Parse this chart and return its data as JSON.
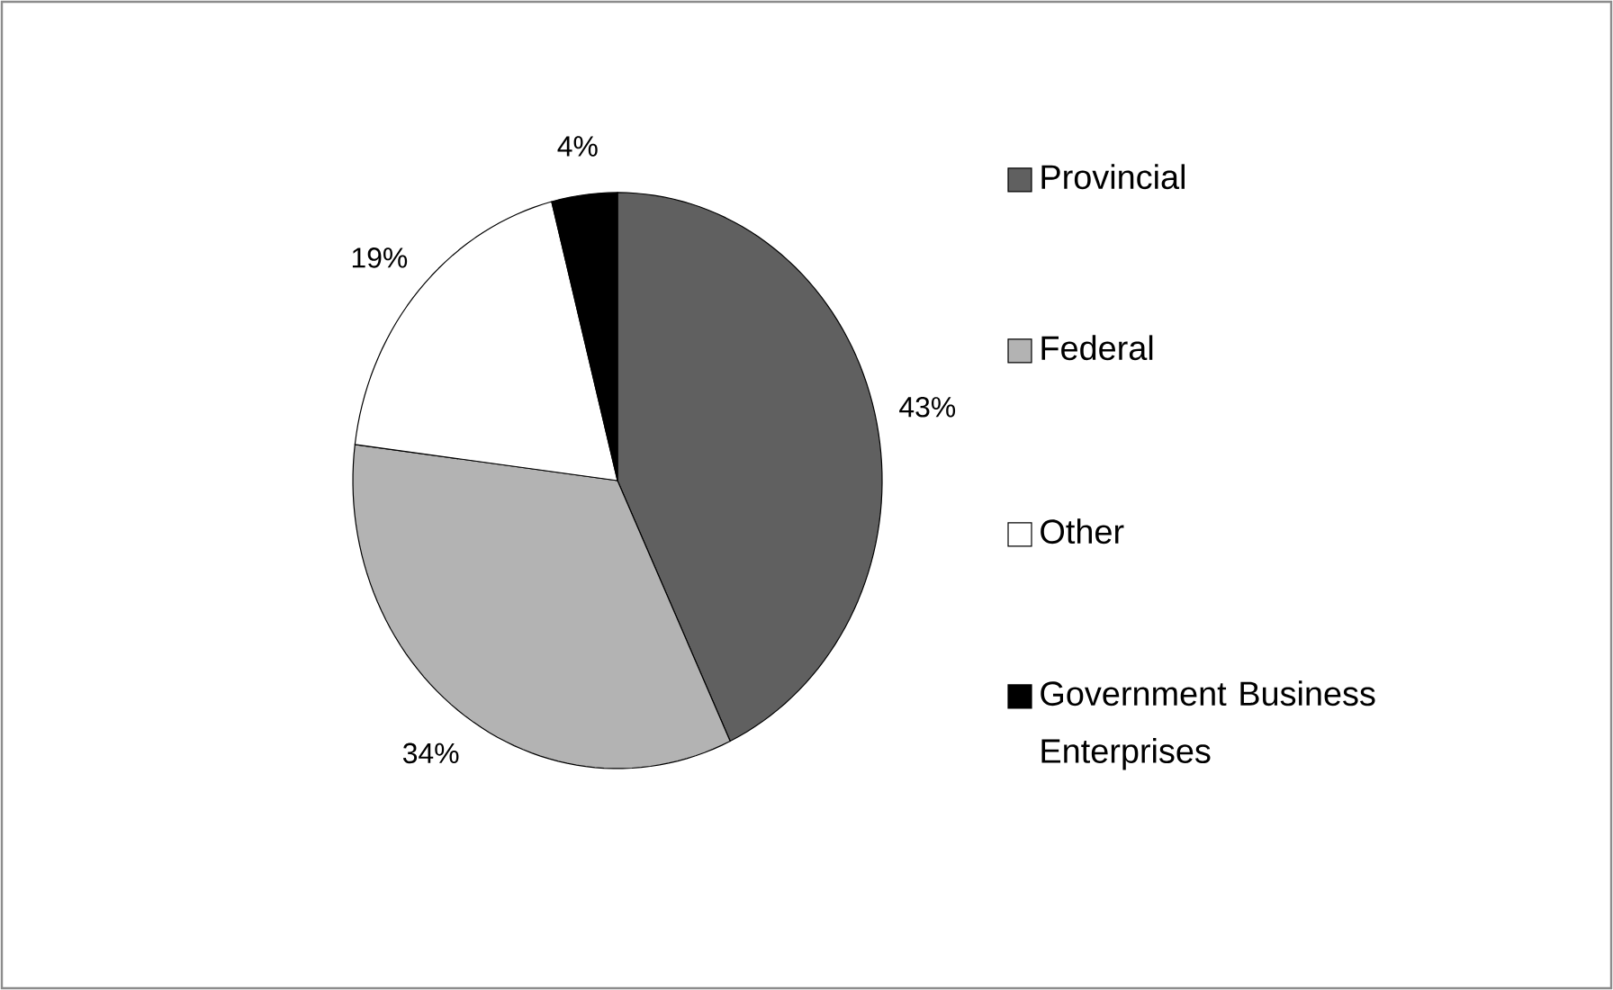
{
  "chart_data": {
    "type": "pie",
    "categories": [
      "Provincial",
      "Federal",
      "Other",
      "Government Business Enterprises"
    ],
    "values": [
      43,
      34,
      19,
      4
    ],
    "colors": [
      "#606060",
      "#b3b3b3",
      "#ffffff",
      "#000000"
    ],
    "value_labels": [
      "43%",
      "34%",
      "19%",
      "4%"
    ],
    "legend": "right"
  }
}
